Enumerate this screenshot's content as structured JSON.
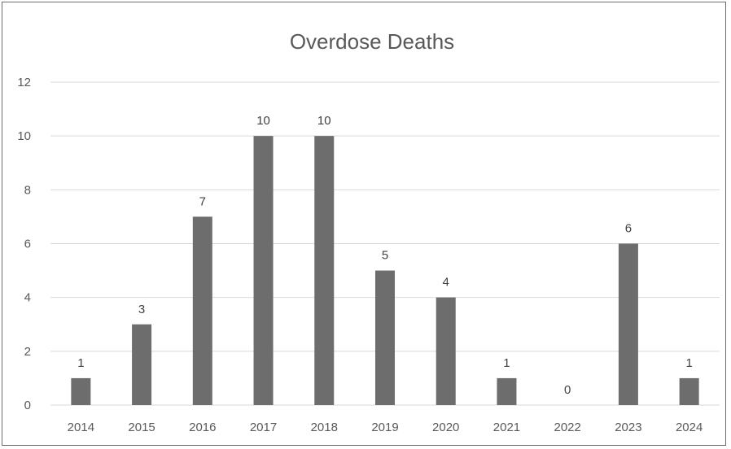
{
  "chart_data": {
    "type": "bar",
    "title": "Overdose Deaths",
    "categories": [
      "2014",
      "2015",
      "2016",
      "2017",
      "2018",
      "2019",
      "2020",
      "2021",
      "2022",
      "2023",
      "2024"
    ],
    "values": [
      1,
      3,
      7,
      10,
      10,
      5,
      4,
      1,
      0,
      6,
      1
    ],
    "xlabel": "",
    "ylabel": "",
    "ylim": [
      0,
      12
    ],
    "yticks": [
      0,
      2,
      4,
      6,
      8,
      10,
      12
    ],
    "grid": true,
    "data_labels": true,
    "legend": "none",
    "colors": {
      "bar": "#6d6d6d",
      "grid": "#d9d9d9",
      "text": "#595959",
      "border": "#6b6b6b"
    }
  }
}
